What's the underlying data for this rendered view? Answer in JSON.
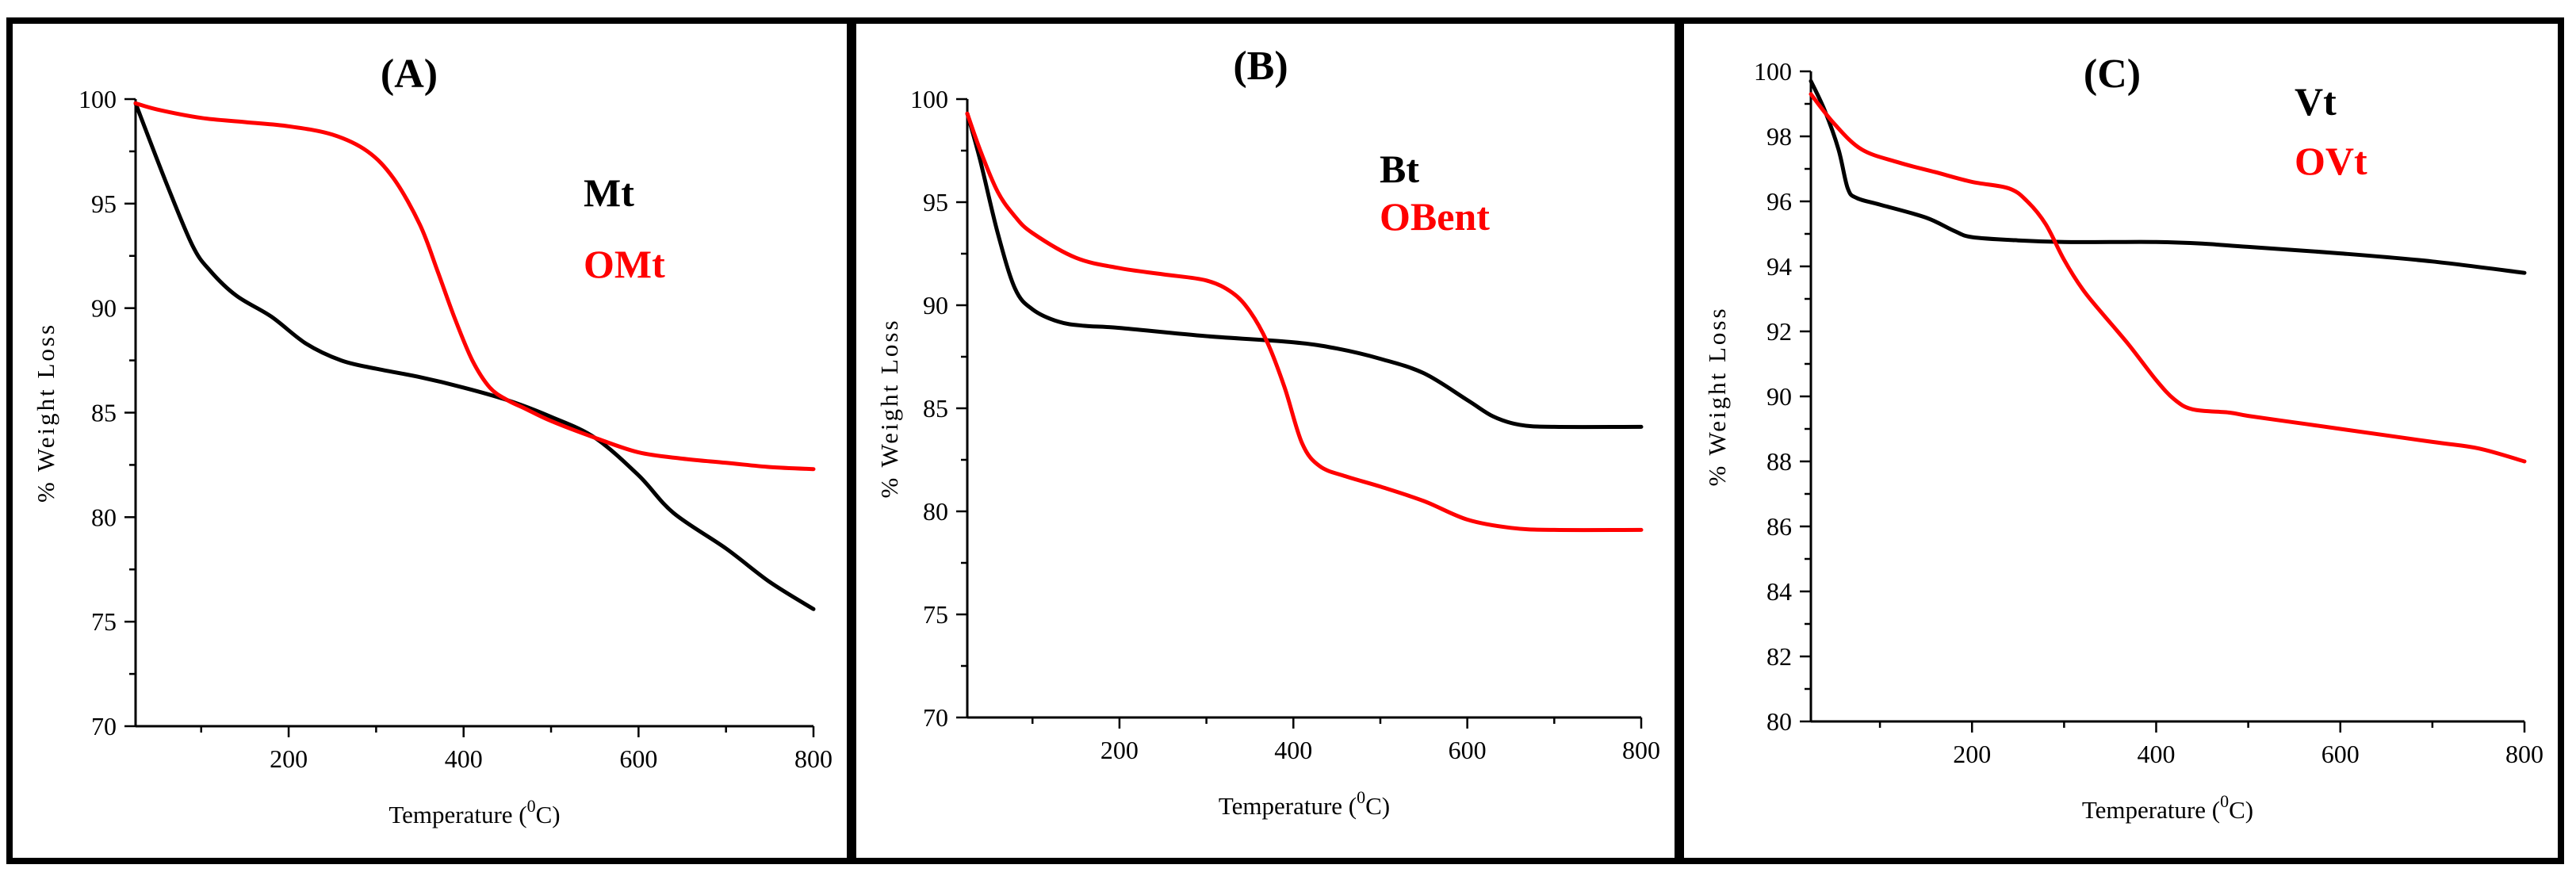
{
  "chart_data": [
    {
      "panel": "(A)",
      "type": "line",
      "xlabel": "Temperature (",
      "xlabel_sup": "0",
      "xlabel_end": "C)",
      "ylabel": "% Weight Loss",
      "xlim": [
        25,
        800
      ],
      "ylim": [
        70,
        100
      ],
      "xticks": [
        200,
        400,
        600,
        800
      ],
      "yticks": [
        70,
        75,
        80,
        85,
        90,
        95,
        100
      ],
      "legend_position": "top-right",
      "series": [
        {
          "name": "Mt",
          "color": "#000000",
          "x": [
            25,
            60,
            90,
            110,
            140,
            180,
            220,
            260,
            300,
            350,
            400,
            450,
            500,
            550,
            600,
            640,
            700,
            750,
            800
          ],
          "y": [
            99.8,
            96,
            93,
            91.8,
            90.6,
            89.6,
            88.3,
            87.5,
            87.1,
            86.7,
            86.2,
            85.6,
            84.8,
            83.8,
            82.0,
            80.2,
            78.5,
            76.9,
            75.6
          ]
        },
        {
          "name": "OMt",
          "color": "#ff0000",
          "x": [
            25,
            50,
            100,
            150,
            200,
            250,
            290,
            320,
            350,
            370,
            390,
            410,
            430,
            450,
            470,
            500,
            550,
            600,
            650,
            700,
            750,
            800
          ],
          "y": [
            99.8,
            99.5,
            99.1,
            98.9,
            98.7,
            98.3,
            97.5,
            96.2,
            94,
            91.8,
            89.5,
            87.5,
            86.2,
            85.6,
            85.2,
            84.6,
            83.8,
            83.1,
            82.8,
            82.6,
            82.4,
            82.3
          ]
        }
      ]
    },
    {
      "panel": "(B)",
      "type": "line",
      "xlabel": "Temperature (",
      "xlabel_sup": "0",
      "xlabel_end": "C)",
      "ylabel": "% Weight Loss",
      "xlim": [
        25,
        800
      ],
      "ylim": [
        70,
        100
      ],
      "xticks": [
        200,
        400,
        600,
        800
      ],
      "yticks": [
        70,
        75,
        80,
        85,
        90,
        95,
        100
      ],
      "legend_position": "top-right",
      "series": [
        {
          "name": "Bt",
          "color": "#000000",
          "x": [
            25,
            40,
            60,
            80,
            100,
            130,
            160,
            200,
            300,
            400,
            450,
            500,
            550,
            600,
            630,
            660,
            700,
            800
          ],
          "y": [
            99.3,
            97,
            93.5,
            90.8,
            89.8,
            89.2,
            89,
            88.9,
            88.5,
            88.2,
            87.9,
            87.4,
            86.7,
            85.4,
            84.6,
            84.2,
            84.1,
            84.1
          ]
        },
        {
          "name": "OBent",
          "color": "#ff0000",
          "x": [
            25,
            40,
            60,
            80,
            100,
            150,
            200,
            250,
            300,
            330,
            350,
            370,
            390,
            410,
            430,
            460,
            500,
            550,
            600,
            650,
            700,
            800
          ],
          "y": [
            99.3,
            97.5,
            95.5,
            94.3,
            93.5,
            92.3,
            91.8,
            91.5,
            91.2,
            90.6,
            89.7,
            88.2,
            86,
            83.3,
            82.2,
            81.7,
            81.2,
            80.5,
            79.6,
            79.2,
            79.1,
            79.1
          ]
        }
      ]
    },
    {
      "panel": "(C)",
      "type": "line",
      "xlabel": "Temperature (",
      "xlabel_sup": "0",
      "xlabel_end": "C)",
      "ylabel": "% Weight Loss",
      "xlim": [
        25,
        800
      ],
      "ylim": [
        80,
        100
      ],
      "xticks": [
        200,
        400,
        600,
        800
      ],
      "yticks": [
        80,
        82,
        84,
        86,
        88,
        90,
        92,
        94,
        96,
        98,
        100
      ],
      "legend_position": "top-right",
      "series": [
        {
          "name": "Vt",
          "color": "#000000",
          "x": [
            25,
            40,
            55,
            65,
            75,
            100,
            150,
            180,
            200,
            250,
            300,
            350,
            400,
            450,
            500,
            600,
            700,
            800
          ],
          "y": [
            99.7,
            98.8,
            97.6,
            96.4,
            96.1,
            95.9,
            95.5,
            95.1,
            94.9,
            94.8,
            94.75,
            94.75,
            94.75,
            94.7,
            94.6,
            94.4,
            94.15,
            93.8
          ]
        },
        {
          "name": "OVt",
          "color": "#ff0000",
          "x": [
            25,
            50,
            80,
            120,
            160,
            200,
            240,
            260,
            280,
            300,
            320,
            340,
            370,
            400,
            420,
            440,
            480,
            500,
            550,
            600,
            700,
            750,
            800
          ],
          "y": [
            99.3,
            98.4,
            97.6,
            97.2,
            96.9,
            96.6,
            96.4,
            96.0,
            95.3,
            94.2,
            93.3,
            92.6,
            91.6,
            90.5,
            89.9,
            89.6,
            89.5,
            89.4,
            89.2,
            89.0,
            88.6,
            88.4,
            88.0
          ]
        }
      ]
    }
  ]
}
